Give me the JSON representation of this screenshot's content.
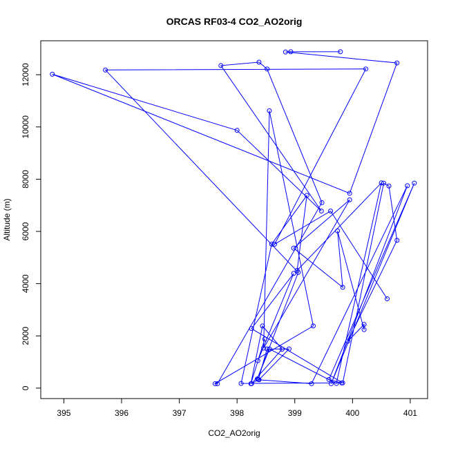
{
  "chart_data": {
    "type": "line",
    "title": "ORCAS RF03-4 CO2_AO2orig",
    "xlabel": "CO2_AO2orig",
    "ylabel": "Altitude (m)",
    "xlim": [
      394.6,
      401.3
    ],
    "ylim": [
      -400,
      13300
    ],
    "xticks": [
      395,
      396,
      397,
      398,
      399,
      400,
      401
    ],
    "yticks": [
      0,
      2000,
      4000,
      6000,
      8000,
      10000,
      12000
    ],
    "grid": false,
    "color": "#0000ff",
    "series": [
      {
        "x": [
          399.79,
          398.93,
          398.84,
          400.77,
          399.95,
          394.8,
          398.0,
          399.46,
          397.72,
          398.38,
          398.52,
          399.47,
          397.66,
          397.62,
          399.32,
          398.56,
          398.46,
          399.95,
          398.98,
          399.83,
          399.74,
          400.2,
          400.2,
          399.92,
          400.77,
          400.63,
          400.54,
          399.83,
          398.25,
          398.98,
          398.36,
          398.48,
          398.24,
          398.44,
          398.78,
          398.25,
          398.37,
          398.52,
          398.9,
          398.38,
          399.29,
          400.95,
          399.63,
          401.07,
          399.59,
          399.81,
          398.07,
          398.6,
          399.21,
          399.04,
          400.5,
          399.72,
          398.56,
          398.35,
          399.06,
          395.72,
          400.23,
          398.65,
          399.62,
          400.6
        ],
        "y": [
          12880,
          12880,
          12870,
          12450,
          7460,
          12020,
          9870,
          6780,
          12350,
          12480,
          12220,
          7100,
          170,
          170,
          2380,
          10620,
          1530,
          7210,
          5360,
          3860,
          6020,
          2240,
          2440,
          1800,
          5660,
          7740,
          7850,
          200,
          2280,
          4390,
          1050,
          1880,
          170,
          2380,
          1490,
          170,
          330,
          1500,
          1500,
          320,
          170,
          7750,
          170,
          7850,
          330,
          200,
          180,
          5510,
          7380,
          4510,
          7860,
          180,
          1500,
          350,
          4430,
          12180,
          12220,
          5510,
          6780,
          3420
        ]
      }
    ]
  }
}
